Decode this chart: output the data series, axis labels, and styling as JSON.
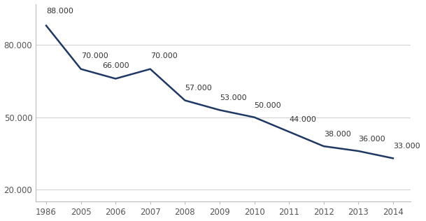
{
  "years": [
    1986,
    2005,
    2006,
    2007,
    2008,
    2009,
    2010,
    2011,
    2012,
    2013,
    2014
  ],
  "values": [
    88000,
    70000,
    66000,
    70000,
    57000,
    53000,
    50000,
    44000,
    38000,
    36000,
    33000
  ],
  "labels": [
    "88.000",
    "70.000",
    "66.000",
    "70.000",
    "57.000",
    "53.000",
    "50.000",
    "44.000",
    "38.000",
    "36.000",
    "33.000"
  ],
  "line_color": "#1F3864",
  "line_width": 1.8,
  "yticks": [
    20000,
    50000,
    80000
  ],
  "ytick_labels": [
    "20.000",
    "50.000",
    "80.000"
  ],
  "ylim": [
    15000,
    97000
  ],
  "grid_color": "#BBBBBB",
  "background_color": "#FFFFFF",
  "label_fontsize": 8,
  "tick_fontsize": 8.5,
  "x_indices": [
    0,
    1,
    2,
    3,
    4,
    5,
    6,
    7,
    8,
    9,
    10
  ]
}
